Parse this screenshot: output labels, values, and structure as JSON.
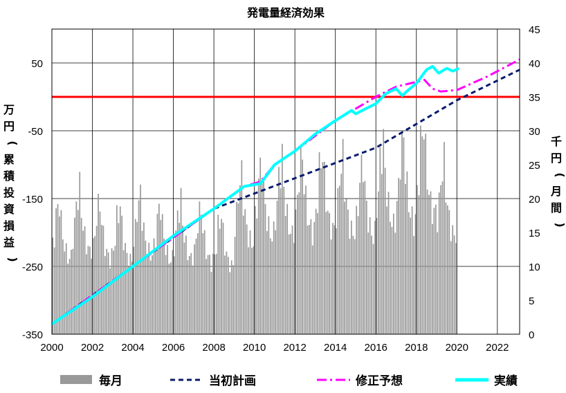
{
  "chart_data": {
    "type": "bar+line",
    "title": "発電量経済効果",
    "ylabel_left": "万円(累積投資損益)",
    "ylabel_right": "千円(月間)",
    "xlim": [
      2000,
      2023.1
    ],
    "ylim_left": [
      -350,
      100
    ],
    "ylim_right": [
      0,
      45
    ],
    "x_ticks": [
      "2000",
      "2002",
      "2004",
      "2006",
      "2008",
      "2010",
      "2012",
      "2014",
      "2016",
      "2018",
      "2020",
      "2022"
    ],
    "y_left_ticks": [
      "50",
      "-50",
      "-150",
      "-250",
      "-350"
    ],
    "y_right_ticks": [
      "45",
      "40",
      "35",
      "30",
      "25",
      "20",
      "15",
      "10",
      "5",
      "0"
    ],
    "grid": true,
    "reference_line": {
      "value_left": 0,
      "color": "#ff0000"
    },
    "legend_position": "bottom",
    "series": [
      {
        "name": "毎月",
        "kind": "bar",
        "axis": "right",
        "color": "#999999",
        "seasonal": [
          13.0,
          14.5,
          17.5,
          18.5,
          19.5,
          16.5,
          14.5,
          13.0,
          12.0,
          11.5,
          11.0,
          11.5
        ],
        "year_factor": [
          {
            "year": 2000,
            "factor": 1.0
          },
          {
            "year": 2001,
            "factor": 1.1
          },
          {
            "year": 2002,
            "factor": 1.0
          },
          {
            "year": 2003,
            "factor": 0.97
          },
          {
            "year": 2004,
            "factor": 1.05
          },
          {
            "year": 2005,
            "factor": 0.98
          },
          {
            "year": 2006,
            "factor": 1.0
          },
          {
            "year": 2007,
            "factor": 0.95
          },
          {
            "year": 2008,
            "factor": 0.9
          },
          {
            "year": 2009,
            "factor": 1.2
          },
          {
            "year": 2010,
            "factor": 1.3
          },
          {
            "year": 2011,
            "factor": 1.32
          },
          {
            "year": 2012,
            "factor": 1.35
          },
          {
            "year": 2013,
            "factor": 1.38
          },
          {
            "year": 2014,
            "factor": 1.33
          },
          {
            "year": 2015,
            "factor": 1.3
          },
          {
            "year": 2016,
            "factor": 1.45
          },
          {
            "year": 2017,
            "factor": 1.48
          },
          {
            "year": 2018,
            "factor": 1.6
          },
          {
            "year": 2019,
            "factor": 1.3
          }
        ],
        "end_year": 2020.05
      },
      {
        "name": "当初計画",
        "kind": "line",
        "axis": "left",
        "color": "#0a1a6e",
        "dash": "dashed",
        "points": [
          {
            "x": 2000,
            "y": -335
          },
          {
            "x": 2004,
            "y": -250
          },
          {
            "x": 2008,
            "y": -165
          },
          {
            "x": 2012,
            "y": -120
          },
          {
            "x": 2016,
            "y": -75
          },
          {
            "x": 2020,
            "y": -5
          },
          {
            "x": 2023.1,
            "y": 40
          }
        ]
      },
      {
        "name": "修正予想",
        "kind": "line",
        "axis": "left",
        "color": "#ff00ff",
        "dash": "dashdot",
        "points": [
          {
            "x": 2000,
            "y": -335
          },
          {
            "x": 2004,
            "y": -250
          },
          {
            "x": 2008,
            "y": -165
          },
          {
            "x": 2009.5,
            "y": -132
          },
          {
            "x": 2010.3,
            "y": -125
          },
          {
            "x": 2011,
            "y": -100
          },
          {
            "x": 2012,
            "y": -80
          },
          {
            "x": 2014,
            "y": -35
          },
          {
            "x": 2016,
            "y": 0
          },
          {
            "x": 2017,
            "y": 15
          },
          {
            "x": 2018.4,
            "y": 25
          },
          {
            "x": 2018.8,
            "y": 12
          },
          {
            "x": 2019.2,
            "y": 8
          },
          {
            "x": 2020,
            "y": 10
          },
          {
            "x": 2021.5,
            "y": 30
          },
          {
            "x": 2023.1,
            "y": 55
          }
        ]
      },
      {
        "name": "実績",
        "kind": "line",
        "axis": "left",
        "color": "#00ffff",
        "dash": "solid",
        "points": [
          {
            "x": 2000,
            "y": -335
          },
          {
            "x": 2002,
            "y": -295
          },
          {
            "x": 2004,
            "y": -250
          },
          {
            "x": 2006,
            "y": -205
          },
          {
            "x": 2008,
            "y": -165
          },
          {
            "x": 2009.5,
            "y": -132
          },
          {
            "x": 2010.3,
            "y": -128
          },
          {
            "x": 2011,
            "y": -100
          },
          {
            "x": 2012,
            "y": -80
          },
          {
            "x": 2013,
            "y": -55
          },
          {
            "x": 2014,
            "y": -35
          },
          {
            "x": 2014.8,
            "y": -20
          },
          {
            "x": 2015,
            "y": -25
          },
          {
            "x": 2016,
            "y": -10
          },
          {
            "x": 2016.5,
            "y": 5
          },
          {
            "x": 2017,
            "y": 12
          },
          {
            "x": 2017.3,
            "y": 2
          },
          {
            "x": 2017.6,
            "y": 10
          },
          {
            "x": 2018,
            "y": 20
          },
          {
            "x": 2018.5,
            "y": 40
          },
          {
            "x": 2018.8,
            "y": 45
          },
          {
            "x": 2019.1,
            "y": 35
          },
          {
            "x": 2019.5,
            "y": 42
          },
          {
            "x": 2019.8,
            "y": 38
          },
          {
            "x": 2020.1,
            "y": 42
          }
        ]
      }
    ]
  },
  "legend": {
    "items": [
      {
        "label": "毎月",
        "kind": "bar",
        "color": "#999999"
      },
      {
        "label": "当初計画",
        "kind": "dashed",
        "color": "#0a1a6e"
      },
      {
        "label": "修正予想",
        "kind": "dashdot",
        "color": "#ff00ff"
      },
      {
        "label": "実績",
        "kind": "solid",
        "color": "#00ffff"
      }
    ]
  }
}
